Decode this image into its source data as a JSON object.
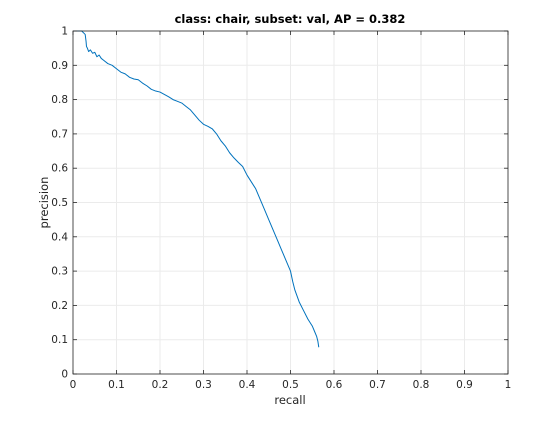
{
  "chart_data": {
    "type": "line",
    "title": "class: chair, subset: val, AP = 0.382",
    "xlabel": "recall",
    "ylabel": "precision",
    "xlim": [
      0,
      1
    ],
    "ylim": [
      0,
      1
    ],
    "grid": true,
    "x_ticks": [
      0,
      0.1,
      0.2,
      0.3,
      0.4,
      0.5,
      0.6,
      0.7,
      0.8,
      0.9,
      1
    ],
    "x_tick_labels": [
      "0",
      "0.1",
      "0.2",
      "0.3",
      "0.4",
      "0.5",
      "0.6",
      "0.7",
      "0.8",
      "0.9",
      "1"
    ],
    "y_ticks": [
      0,
      0.1,
      0.2,
      0.3,
      0.4,
      0.5,
      0.6,
      0.7,
      0.8,
      0.9,
      1
    ],
    "y_tick_labels": [
      "0",
      "0.1",
      "0.2",
      "0.3",
      "0.4",
      "0.5",
      "0.6",
      "0.7",
      "0.8",
      "0.9",
      "1"
    ],
    "series": [
      {
        "name": "precision-recall",
        "color": "#0072bd",
        "x": [
          0.0,
          0.01,
          0.02,
          0.028,
          0.03,
          0.031,
          0.033,
          0.036,
          0.04,
          0.045,
          0.05,
          0.055,
          0.06,
          0.065,
          0.07,
          0.08,
          0.09,
          0.1,
          0.11,
          0.12,
          0.13,
          0.14,
          0.15,
          0.16,
          0.17,
          0.18,
          0.19,
          0.2,
          0.21,
          0.22,
          0.23,
          0.24,
          0.25,
          0.26,
          0.27,
          0.28,
          0.29,
          0.3,
          0.31,
          0.32,
          0.33,
          0.34,
          0.35,
          0.36,
          0.37,
          0.38,
          0.39,
          0.4,
          0.41,
          0.42,
          0.43,
          0.44,
          0.45,
          0.46,
          0.47,
          0.48,
          0.49,
          0.5,
          0.505,
          0.51,
          0.52,
          0.53,
          0.54,
          0.55,
          0.555,
          0.56,
          0.563,
          0.565
        ],
        "values": [
          1.0,
          1.0,
          1.0,
          0.99,
          0.97,
          0.955,
          0.95,
          0.94,
          0.945,
          0.935,
          0.938,
          0.925,
          0.93,
          0.92,
          0.915,
          0.905,
          0.9,
          0.89,
          0.88,
          0.875,
          0.865,
          0.86,
          0.858,
          0.848,
          0.84,
          0.83,
          0.825,
          0.822,
          0.815,
          0.808,
          0.8,
          0.795,
          0.79,
          0.78,
          0.77,
          0.755,
          0.74,
          0.728,
          0.722,
          0.715,
          0.7,
          0.68,
          0.665,
          0.645,
          0.63,
          0.617,
          0.605,
          0.58,
          0.56,
          0.54,
          0.51,
          0.48,
          0.45,
          0.42,
          0.39,
          0.36,
          0.33,
          0.3,
          0.27,
          0.245,
          0.21,
          0.185,
          0.16,
          0.14,
          0.125,
          0.11,
          0.095,
          0.078
        ]
      }
    ]
  }
}
